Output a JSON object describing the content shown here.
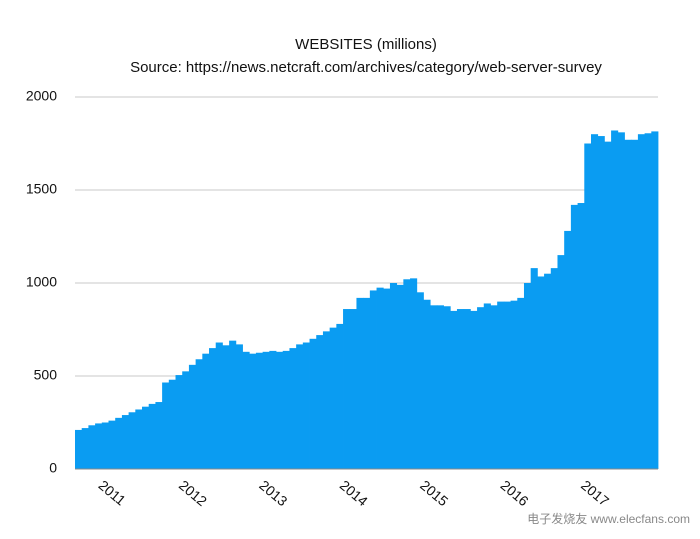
{
  "chart_data": {
    "type": "bar",
    "title": "WEBSITES (millions)",
    "subtitle": "Source: https://news.netcraft.com/archives/category/web-server-survey",
    "categories": [
      null,
      null,
      null,
      null,
      null,
      "2011",
      null,
      null,
      null,
      null,
      null,
      null,
      null,
      null,
      null,
      null,
      null,
      "2012",
      null,
      null,
      null,
      null,
      null,
      null,
      null,
      null,
      null,
      null,
      null,
      "2013",
      null,
      null,
      null,
      null,
      null,
      null,
      null,
      null,
      null,
      null,
      null,
      "2014",
      null,
      null,
      null,
      null,
      null,
      null,
      null,
      null,
      null,
      null,
      null,
      "2015",
      null,
      null,
      null,
      null,
      null,
      null,
      null,
      null,
      null,
      null,
      null,
      "2016",
      null,
      null,
      null,
      null,
      null,
      null,
      null,
      null,
      null,
      null,
      null,
      "2017",
      null,
      null,
      null,
      null,
      null,
      null,
      null,
      null,
      null
    ],
    "values": [
      210,
      220,
      235,
      245,
      250,
      260,
      275,
      290,
      305,
      320,
      335,
      350,
      360,
      465,
      480,
      505,
      525,
      560,
      590,
      620,
      650,
      680,
      665,
      690,
      670,
      630,
      620,
      625,
      630,
      635,
      630,
      635,
      650,
      670,
      680,
      700,
      720,
      740,
      760,
      780,
      860,
      860,
      920,
      920,
      960,
      975,
      970,
      1000,
      990,
      1020,
      1025,
      950,
      910,
      880,
      880,
      875,
      850,
      860,
      860,
      850,
      870,
      890,
      880,
      900,
      900,
      905,
      920,
      1000,
      1080,
      1035,
      1050,
      1080,
      1150,
      1280,
      1420,
      1430,
      1750,
      1800,
      1790,
      1760,
      1820,
      1810,
      1770,
      1770,
      1800,
      1805,
      1815
    ],
    "color": "#0a9cf2",
    "ylim": [
      0,
      2000
    ],
    "yticks": [
      0,
      500,
      1000,
      1500,
      2000
    ],
    "grid": true,
    "watermark": "电子发烧友 www.elecfans.com"
  }
}
